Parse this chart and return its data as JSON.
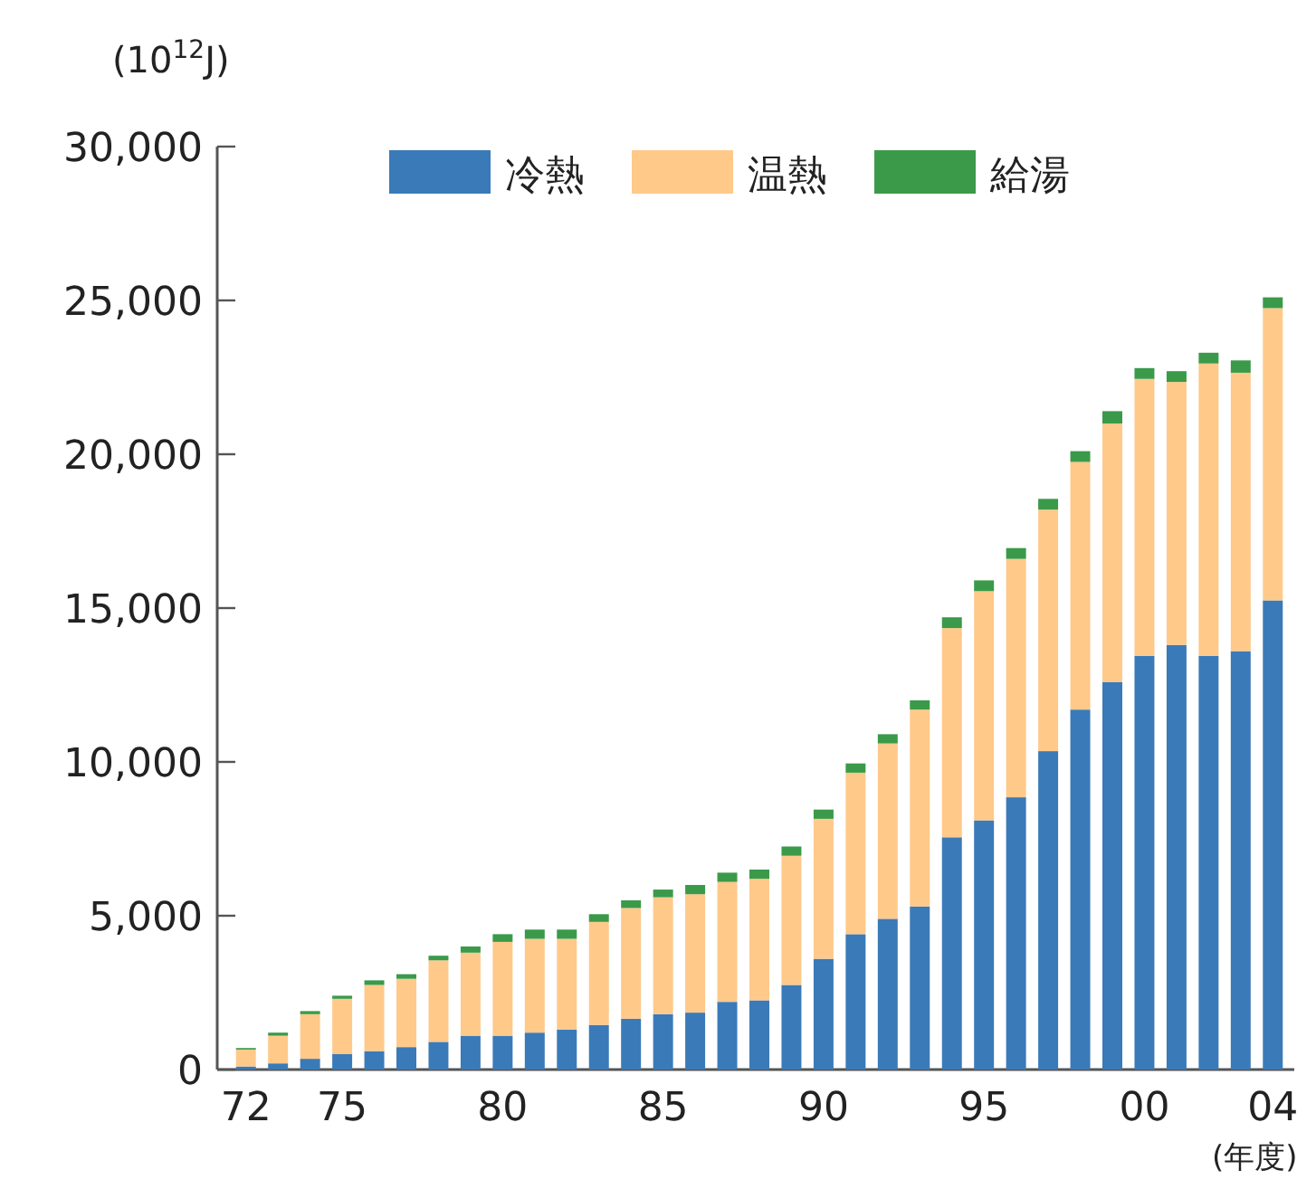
{
  "chart_data": {
    "type": "bar",
    "stacked": true,
    "ylabel": "(10$^{12}$J)",
    "xlabel": "(年度)",
    "legend": "top",
    "categories": [
      "72",
      null,
      null,
      "75",
      null,
      null,
      null,
      null,
      "80",
      null,
      null,
      null,
      null,
      "85",
      null,
      null,
      null,
      null,
      "90",
      null,
      null,
      null,
      null,
      "95",
      null,
      null,
      null,
      null,
      "00",
      null,
      null,
      null,
      "04"
    ],
    "ylim": [
      0,
      30000
    ],
    "yticks": [
      {
        "value": 0,
        "label": "0"
      },
      {
        "value": 5000,
        "label": "5,000"
      },
      {
        "value": 10000,
        "label": "10,000"
      },
      {
        "value": 15000,
        "label": "15,000"
      },
      {
        "value": 20000,
        "label": "20,000"
      },
      {
        "value": 25000,
        "label": "25,000"
      },
      {
        "value": 30000,
        "label": "30,000"
      }
    ],
    "series": [
      {
        "name": "冷熱",
        "color": "#3a7ab8",
        "values": [
          100,
          200,
          350,
          500,
          600,
          730,
          900,
          1100,
          1100,
          1200,
          1300,
          1450,
          1650,
          1800,
          1850,
          2200,
          2250,
          2750,
          3600,
          4400,
          4900,
          5300,
          7550,
          8100,
          8850,
          10350,
          11700,
          12600,
          13450,
          13800,
          13450,
          13600,
          15250
        ]
      },
      {
        "name": "温熱",
        "color": "#ffc98a",
        "values": [
          550,
          900,
          1450,
          1800,
          2150,
          2220,
          2650,
          2700,
          3050,
          3050,
          2950,
          3350,
          3600,
          3800,
          3850,
          3900,
          3950,
          4200,
          4550,
          5250,
          5700,
          6400,
          6800,
          7450,
          7750,
          7850,
          8050,
          8400,
          9000,
          8550,
          9500,
          9050,
          9500
        ]
      },
      {
        "name": "給湯",
        "color": "#3a9a4a",
        "values": [
          50,
          100,
          100,
          100,
          150,
          150,
          150,
          200,
          250,
          300,
          300,
          250,
          250,
          250,
          300,
          300,
          300,
          300,
          300,
          300,
          300,
          300,
          350,
          350,
          350,
          350,
          350,
          400,
          350,
          350,
          350,
          400,
          350
        ]
      }
    ]
  }
}
